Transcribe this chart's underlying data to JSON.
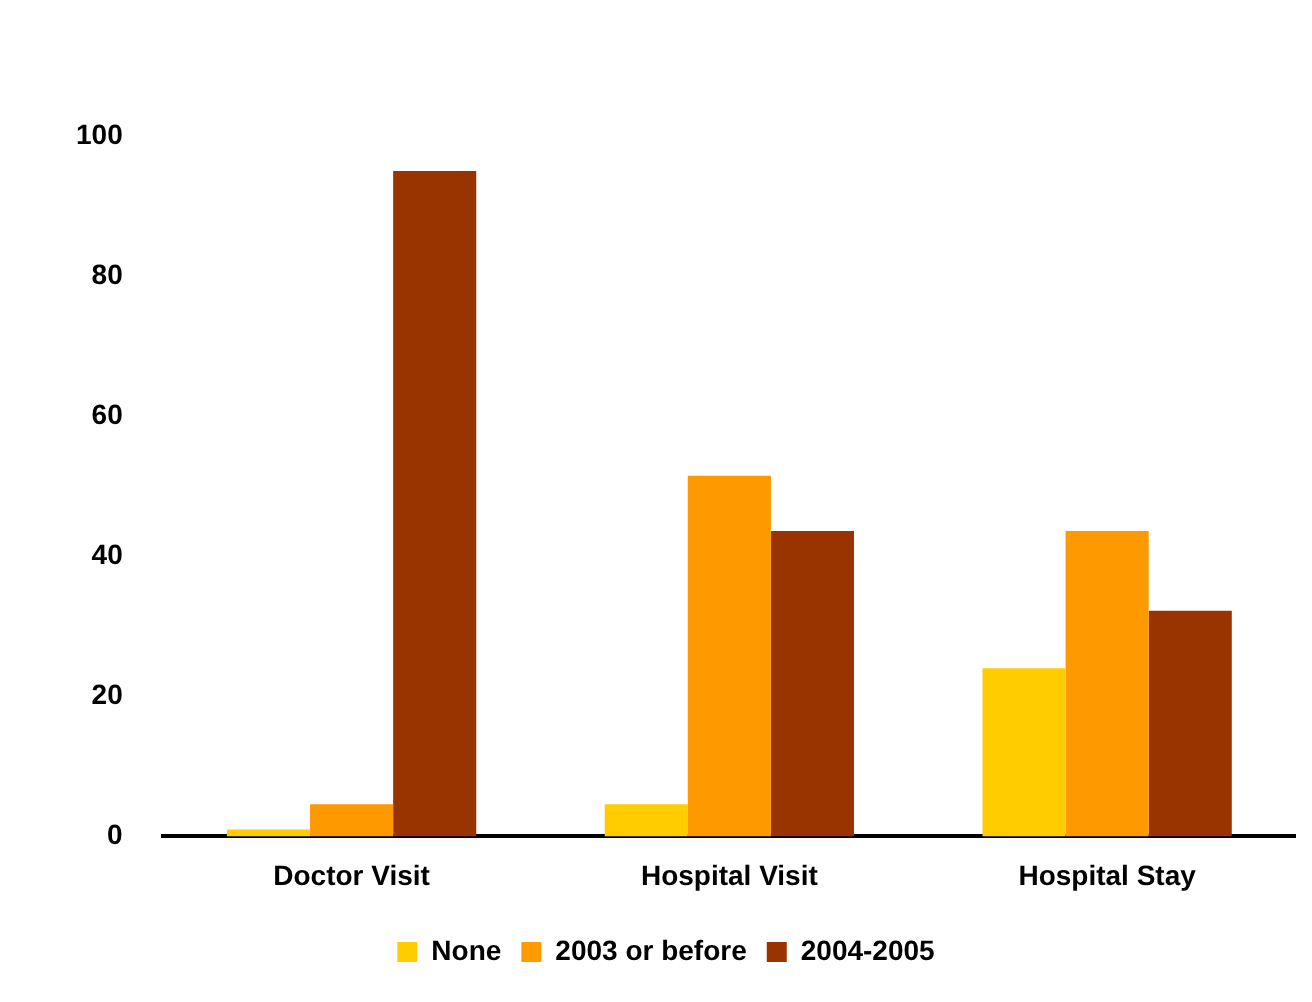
{
  "chart_data": {
    "type": "bar",
    "categories": [
      "Doctor Visit",
      "Hospital Visit",
      "Hospital Stay"
    ],
    "series": [
      {
        "name": "None",
        "color": "#ffcc00",
        "values": [
          1,
          4.6,
          24
        ]
      },
      {
        "name": "2003 or before",
        "color": "#ff9900",
        "values": [
          4.6,
          51.5,
          43.6
        ]
      },
      {
        "name": "2004-2005",
        "color": "#993300",
        "values": [
          95,
          43.6,
          32.2
        ]
      }
    ],
    "ylim": [
      0,
      100
    ],
    "yticks": [
      0,
      20,
      40,
      60,
      80,
      100
    ],
    "grid": false,
    "legend": "bottom"
  }
}
